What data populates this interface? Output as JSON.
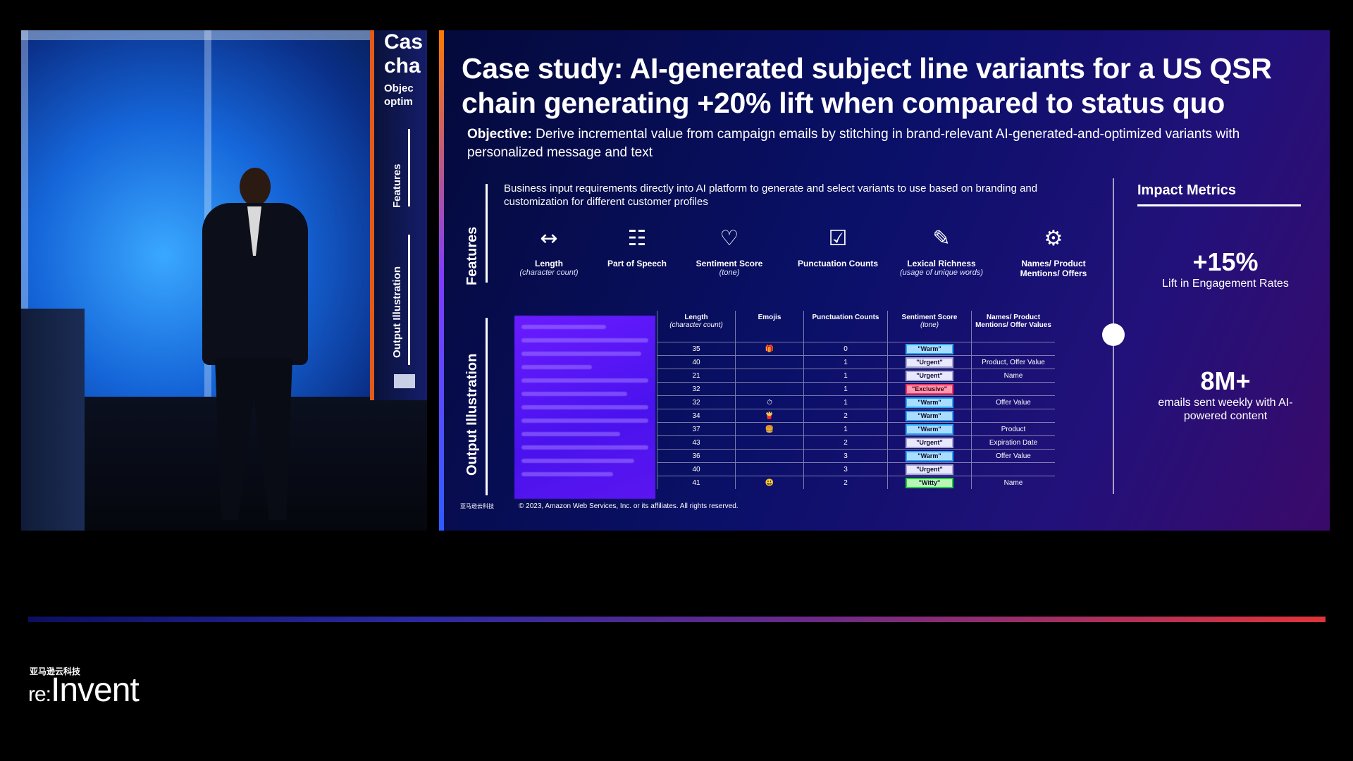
{
  "video": {
    "screen_edge_title": [
      "Cas",
      "cha"
    ],
    "screen_edge_sub": [
      "Objec",
      "optim"
    ],
    "screen_edge_features": "Features",
    "screen_edge_output": "Output Illustration"
  },
  "slide": {
    "title": "Case study: AI-generated subject line variants for a US QSR chain generating +20% lift when compared to status quo",
    "objective_label": "Objective:",
    "objective_text": "Derive incremental value from campaign emails by stitching in brand-relevant AI-generated-and-optimized variants with personalized message and text",
    "features_label": "Features",
    "output_label": "Output Illustration",
    "business_input": "Business input requirements directly into AI platform to generate and select variants to use based on branding and customization for different customer profiles",
    "features": [
      {
        "icon": "arrows-horizontal-icon",
        "glyph": "↔",
        "name": "Length",
        "sub": "(character count)"
      },
      {
        "icon": "hierarchy-icon",
        "glyph": "☷",
        "name": "Part of Speech",
        "sub": ""
      },
      {
        "icon": "person-heart-icon",
        "glyph": "♡",
        "name": "Sentiment Score",
        "sub": "(tone)"
      },
      {
        "icon": "checklist-icon",
        "glyph": "☑",
        "name": "Punctuation Counts",
        "sub": ""
      },
      {
        "icon": "document-edit-icon",
        "glyph": "✎",
        "name": "Lexical Richness",
        "sub": "(usage of unique words)"
      },
      {
        "icon": "dollar-gear-icon",
        "glyph": "⚙",
        "name": "Names/ Product Mentions/ Offers",
        "sub": ""
      }
    ],
    "table": {
      "headers": [
        {
          "label": "Length",
          "sub": "(character count)"
        },
        {
          "label": "Emojis",
          "sub": ""
        },
        {
          "label": "Punctuation Counts",
          "sub": ""
        },
        {
          "label": "Sentiment Score",
          "sub": "(tone)"
        },
        {
          "label": "Names/ Product Mentions/ Offer Values",
          "sub": ""
        }
      ],
      "rows": [
        {
          "length": "35",
          "emoji": "🎁",
          "punct": "0",
          "sentiment": "\"Warm\"",
          "type": "warm",
          "names": ""
        },
        {
          "length": "40",
          "emoji": "",
          "punct": "1",
          "sentiment": "\"Urgent\"",
          "type": "urgent",
          "names": "Product, Offer Value"
        },
        {
          "length": "21",
          "emoji": "",
          "punct": "1",
          "sentiment": "\"Urgent\"",
          "type": "urgent",
          "names": "Name"
        },
        {
          "length": "32",
          "emoji": "",
          "punct": "1",
          "sentiment": "\"Exclusive\"",
          "type": "exclusive",
          "names": ""
        },
        {
          "length": "32",
          "emoji": "⏱",
          "punct": "1",
          "sentiment": "\"Warm\"",
          "type": "warm",
          "names": "Offer Value"
        },
        {
          "length": "34",
          "emoji": "🍟",
          "punct": "2",
          "sentiment": "\"Warm\"",
          "type": "warm",
          "names": ""
        },
        {
          "length": "37",
          "emoji": "🍔",
          "punct": "1",
          "sentiment": "\"Warm\"",
          "type": "warm",
          "names": "Product"
        },
        {
          "length": "43",
          "emoji": "",
          "punct": "2",
          "sentiment": "\"Urgent\"",
          "type": "urgent",
          "names": "Expiration Date"
        },
        {
          "length": "36",
          "emoji": "",
          "punct": "3",
          "sentiment": "\"Warm\"",
          "type": "warm",
          "names": "Offer Value"
        },
        {
          "length": "40",
          "emoji": "",
          "punct": "3",
          "sentiment": "\"Urgent\"",
          "type": "urgent",
          "names": ""
        },
        {
          "length": "41",
          "emoji": "😃",
          "punct": "2",
          "sentiment": "\"Witty\"",
          "type": "witty",
          "names": "Name"
        }
      ]
    },
    "impact_title": "Impact Metrics",
    "metrics": [
      {
        "value": "+15%",
        "desc": "Lift in Engagement Rates"
      },
      {
        "value": "8M+",
        "desc": "emails sent weekly with AI-powered content"
      }
    ],
    "logo_mini": "亚马逊云科技",
    "copyright": "© 2023, Amazon Web Services, Inc. or its affiliates. All rights reserved."
  },
  "brand": {
    "cn": "亚马逊云科技",
    "prefix": "re:",
    "name": "Invent"
  }
}
